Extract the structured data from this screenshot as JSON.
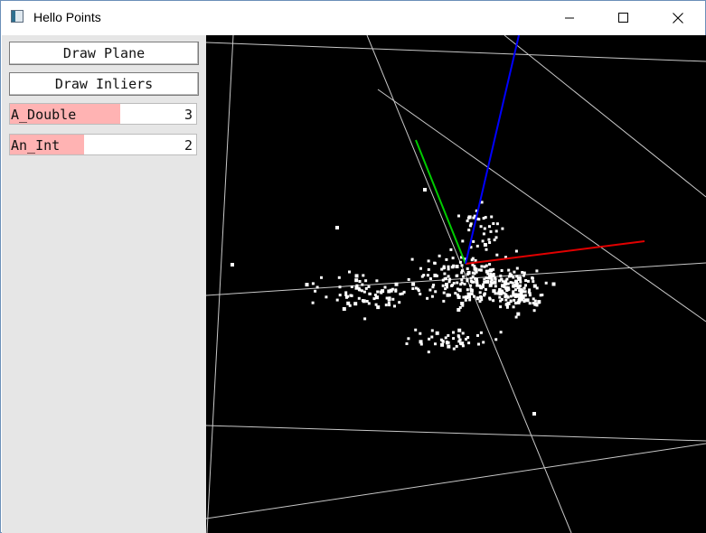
{
  "window": {
    "title": "Hello Points"
  },
  "panel": {
    "buttons": [
      {
        "label": "Draw Plane"
      },
      {
        "label": "Draw Inliers"
      }
    ],
    "sliders": [
      {
        "label": "A_Double",
        "value": "3",
        "level": 0.59
      },
      {
        "label": "An_Int",
        "value": "2",
        "level": 0.4
      }
    ]
  },
  "viewport": {
    "background": "#000000",
    "grid_color": "#c8c8c8",
    "point_color": "#ffffff",
    "axis_colors": {
      "x": "#e00000",
      "y": "#00cc00",
      "z": "#0000ff"
    }
  },
  "colors": {
    "panel_bg": "#e6e6e6",
    "slider_fill": "#ffb3b3"
  }
}
